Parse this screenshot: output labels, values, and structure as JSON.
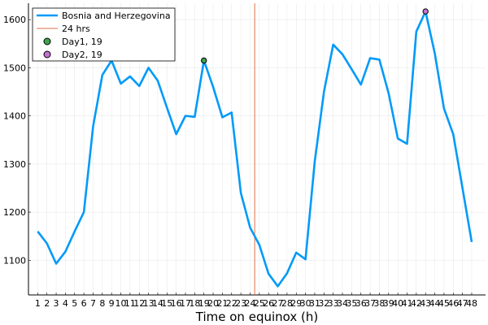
{
  "chart_data": {
    "type": "line",
    "title": "",
    "xlabel": "Time on equinox (h)",
    "ylabel": "",
    "xlim": [
      0.0,
      49.5
    ],
    "ylim": [
      1028,
      1634
    ],
    "grid": true,
    "legend_position": "top-left",
    "x_ticks": [
      1,
      2,
      3,
      4,
      5,
      6,
      7,
      8,
      9,
      10,
      11,
      12,
      13,
      14,
      15,
      16,
      17,
      18,
      19,
      20,
      21,
      22,
      23,
      24,
      25,
      26,
      27,
      28,
      29,
      30,
      31,
      32,
      33,
      34,
      35,
      36,
      37,
      38,
      39,
      40,
      41,
      42,
      43,
      44,
      45,
      46,
      47,
      48
    ],
    "x_tick_labels": [
      "1",
      "2",
      "3",
      "4",
      "5",
      "6",
      "7",
      "8",
      "9",
      "10",
      "11",
      "12",
      "13",
      "14",
      "15",
      "16",
      "17",
      "18",
      "19",
      "20",
      "21",
      "22",
      "23",
      "24",
      "25",
      "26",
      "27",
      "28",
      "29",
      "30",
      "31",
      "32",
      "33",
      "34",
      "35",
      "36",
      "37",
      "38",
      "39",
      "40",
      "41",
      "42",
      "43",
      "44",
      "45",
      "46",
      "47",
      "48"
    ],
    "y_ticks": [
      1100,
      1200,
      1300,
      1400,
      1500,
      1600
    ],
    "y_tick_labels": [
      "1100",
      "1200",
      "1300",
      "1400",
      "1500",
      "1600"
    ],
    "series": [
      {
        "name": "Bosnia and Herzegovina",
        "type": "line",
        "color": "#009af9",
        "x": [
          1,
          2,
          3,
          4,
          5,
          6,
          7,
          8,
          9,
          10,
          11,
          12,
          13,
          14,
          15,
          16,
          17,
          18,
          19,
          20,
          21,
          22,
          23,
          24,
          25,
          26,
          27,
          28,
          29,
          30,
          31,
          32,
          33,
          34,
          35,
          36,
          37,
          38,
          39,
          40,
          41,
          42,
          43,
          44,
          45,
          46,
          47,
          48
        ],
        "y": [
          1160,
          1135,
          1093,
          1118,
          1160,
          1200,
          1378,
          1485,
          1515,
          1467,
          1482,
          1462,
          1500,
          1473,
          1417,
          1362,
          1400,
          1398,
          1515,
          1460,
          1397,
          1407,
          1240,
          1168,
          1132,
          1072,
          1046,
          1073,
          1116,
          1102,
          1305,
          1450,
          1548,
          1528,
          1497,
          1465,
          1520,
          1517,
          1447,
          1353,
          1342,
          1575,
          1617,
          1530,
          1415,
          1362,
          1250,
          1138
        ]
      },
      {
        "name": "24 hrs",
        "type": "vline",
        "color": "#e26f46",
        "x": 24.5
      },
      {
        "name": "Day1, 19",
        "type": "scatter",
        "color": "#3da44d",
        "x": [
          19
        ],
        "y": [
          1515
        ]
      },
      {
        "name": "Day2, 19",
        "type": "scatter",
        "color": "#c271d2",
        "x": [
          43
        ],
        "y": [
          1617
        ]
      }
    ]
  }
}
